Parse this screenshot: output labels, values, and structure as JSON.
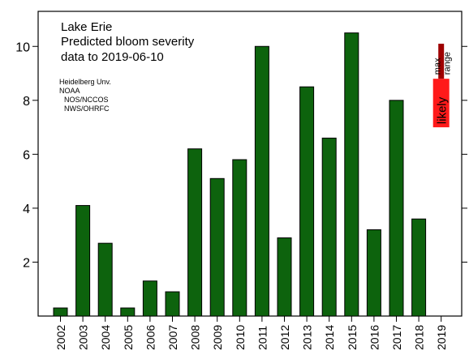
{
  "chart_data": {
    "type": "bar",
    "title_lines": [
      "Lake Erie",
      "Predicted bloom severity",
      "data to 2019-06-10"
    ],
    "credits": [
      "Heidelberg Unv.",
      "NOAA",
      "NOS/NCCOS",
      "NWS/OHRFC"
    ],
    "categories": [
      "2002",
      "2003",
      "2004",
      "2005",
      "2006",
      "2007",
      "2008",
      "2009",
      "2010",
      "2011",
      "2012",
      "2013",
      "2014",
      "2015",
      "2016",
      "2017",
      "2018",
      "2019"
    ],
    "values": [
      0.3,
      4.1,
      2.7,
      0.3,
      1.3,
      0.9,
      6.2,
      5.1,
      5.8,
      10.0,
      2.9,
      8.5,
      6.6,
      10.5,
      3.2,
      8.0,
      3.6,
      null
    ],
    "bar_color": "#0d630d",
    "ylim": [
      0,
      11.3
    ],
    "yticks": [
      2,
      4,
      6,
      8,
      10
    ],
    "grid": false,
    "forecast": {
      "category": "2019",
      "likely_range": [
        7.0,
        8.8
      ],
      "max_range": [
        8.8,
        10.1
      ],
      "likely_label": "likely",
      "max_label": "max\nrange",
      "likely_color": "#ff1a1a",
      "max_color": "#9e0000"
    }
  }
}
